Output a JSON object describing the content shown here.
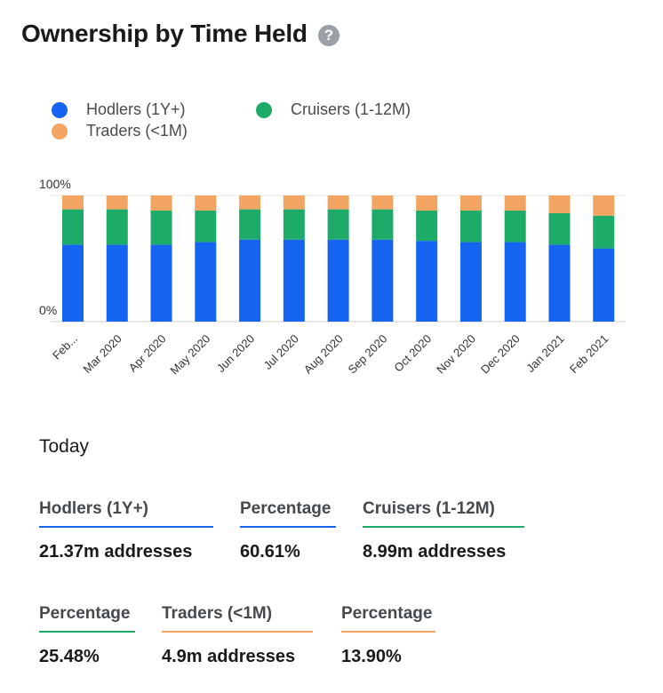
{
  "header": {
    "title": "Ownership by Time Held",
    "help_icon": "question-circle-icon"
  },
  "colors": {
    "hodlers": "#1565f0",
    "cruisers": "#1dab6a",
    "traders": "#f2a562",
    "grid": "#e6e6e6"
  },
  "chart_data": {
    "type": "bar",
    "stacked": true,
    "categories": [
      "Feb...",
      "Mar 2020",
      "Apr 2020",
      "May 2020",
      "Jun 2020",
      "Jul 2020",
      "Aug 2020",
      "Sep 2020",
      "Oct 2020",
      "Nov 2020",
      "Dec 2020",
      "Jan 2021",
      "Feb 2021"
    ],
    "series": [
      {
        "name": "Hodlers (1Y+)",
        "color": "#1565f0",
        "values": [
          61,
          61,
          61,
          63,
          65,
          65,
          65,
          65,
          64,
          63,
          63,
          61,
          58
        ]
      },
      {
        "name": "Cruisers (1-12M)",
        "color": "#1dab6a",
        "values": [
          28,
          28,
          27,
          25,
          24,
          24,
          24,
          24,
          24,
          25,
          25,
          25,
          26
        ]
      },
      {
        "name": "Traders (<1M)",
        "color": "#f2a562",
        "values": [
          11,
          11,
          12,
          12,
          11,
          11,
          11,
          11,
          12,
          12,
          12,
          14,
          16
        ]
      }
    ],
    "ylim": [
      0,
      100
    ],
    "yticks": [
      "0%",
      "100%"
    ],
    "legend_position": "top-left",
    "grid": true
  },
  "today": {
    "title": "Today",
    "hodlers_label": "Hodlers (1Y+)",
    "hodlers_value": "21.37m addresses",
    "hodlers_pct_label": "Percentage",
    "hodlers_pct_value": "60.61%",
    "cruisers_label": "Cruisers (1-12M)",
    "cruisers_value": "8.99m addresses",
    "cruisers_pct_label": "Percentage",
    "cruisers_pct_value": "25.48%",
    "traders_label": "Traders (<1M)",
    "traders_value": "4.9m addresses",
    "traders_pct_label": "Percentage",
    "traders_pct_value": "13.90%"
  }
}
